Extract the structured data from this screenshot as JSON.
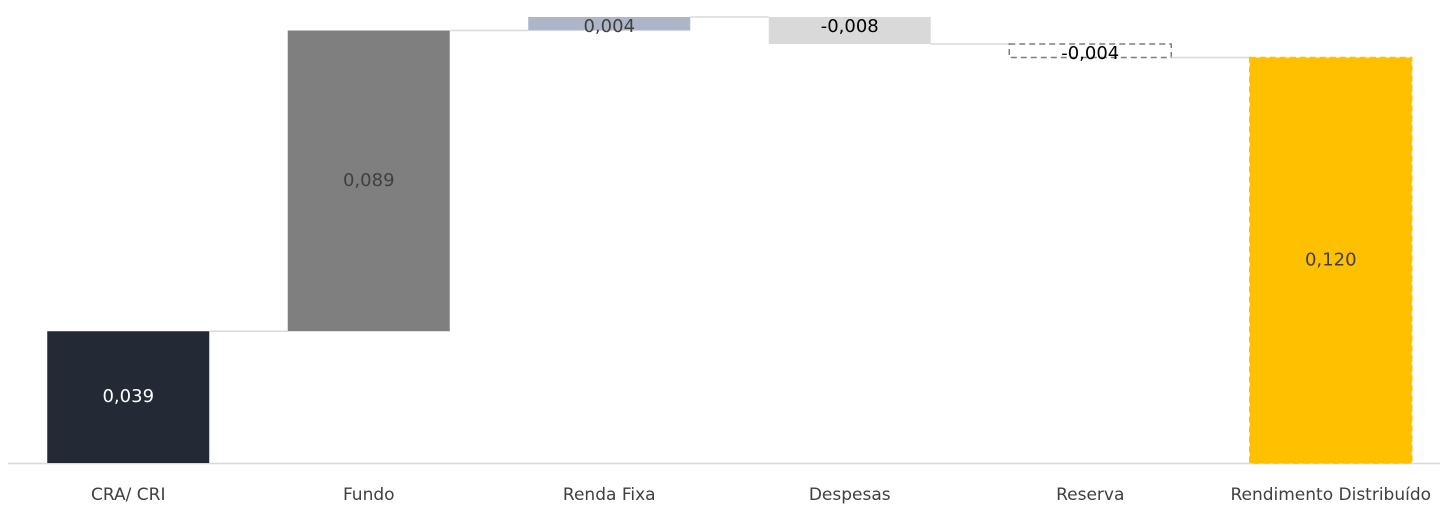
{
  "chart_data": {
    "type": "waterfall",
    "categories": [
      "CRA/ CRI",
      "Fundo",
      "Renda Fixa",
      "Despesas",
      "Reserva",
      "Rendimento Distribuído"
    ],
    "values": [
      0.039,
      0.089,
      0.004,
      -0.008,
      -0.004,
      0.12
    ],
    "value_labels": [
      "0,039",
      "0,089",
      "0,004",
      "-0,008",
      "-0,004",
      "0,120"
    ],
    "colors": [
      "#242a35",
      "#7f7f7f",
      "#acb6c8",
      "#d9d9d9",
      "none",
      "#ffc000"
    ],
    "label_colors": [
      "#ffffff",
      "#404040",
      "#404040",
      "#000000",
      "#000000",
      "#404040"
    ],
    "dashed": [
      false,
      false,
      false,
      false,
      true,
      true
    ],
    "is_total": [
      false,
      false,
      false,
      false,
      false,
      true
    ]
  }
}
